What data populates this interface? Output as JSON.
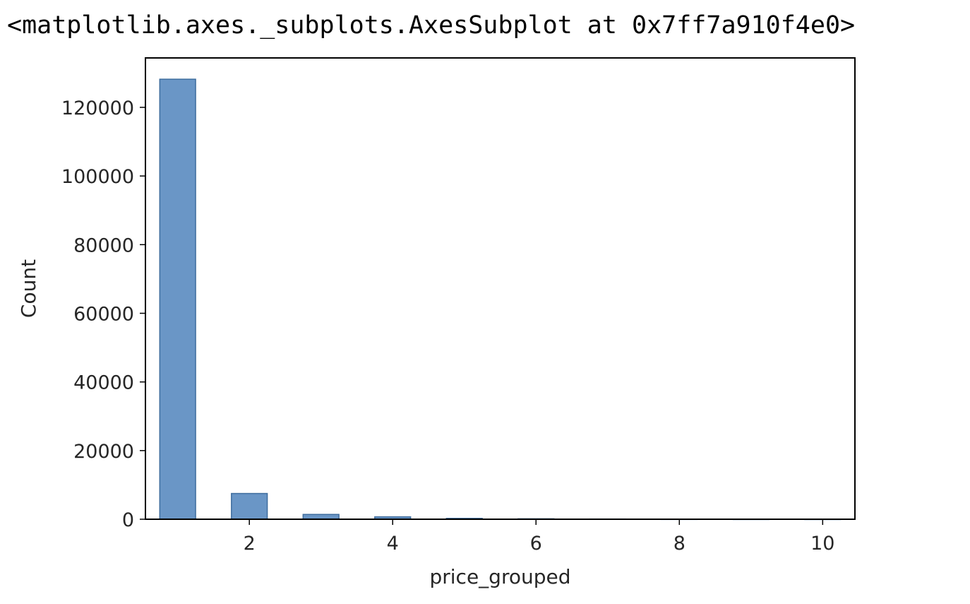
{
  "output_repr": "<matplotlib.axes._subplots.AxesSubplot at 0x7ff7a910f4e0>",
  "chart_data": {
    "type": "bar",
    "xlabel": "price_grouped",
    "ylabel": "Count",
    "xlim": [
      0.55,
      10.45
    ],
    "ylim": [
      0,
      134400
    ],
    "x_ticks": [
      2,
      4,
      6,
      8,
      10
    ],
    "y_ticks": [
      0,
      20000,
      40000,
      60000,
      80000,
      100000,
      120000
    ],
    "bar_width": 0.5,
    "bars": [
      {
        "x": 1,
        "value": 128200
      },
      {
        "x": 2,
        "value": 7500
      },
      {
        "x": 3,
        "value": 1400
      },
      {
        "x": 4,
        "value": 700
      },
      {
        "x": 5,
        "value": 250
      },
      {
        "x": 6,
        "value": 120
      },
      {
        "x": 7,
        "value": 60
      },
      {
        "x": 8,
        "value": 30
      },
      {
        "x": 9,
        "value": 15
      },
      {
        "x": 10,
        "value": 10
      }
    ],
    "bar_color": "#6a96c6",
    "bar_edge_color": "#3f6d9e",
    "grid": false,
    "legend": "none"
  }
}
